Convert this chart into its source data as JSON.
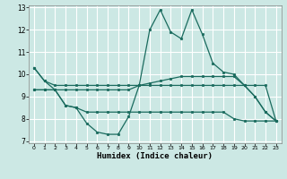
{
  "xlabel": "Humidex (Indice chaleur)",
  "xlim": [
    -0.5,
    23.5
  ],
  "ylim": [
    6.9,
    13.1
  ],
  "yticks": [
    7,
    8,
    9,
    10,
    11,
    12,
    13
  ],
  "xticks": [
    0,
    1,
    2,
    3,
    4,
    5,
    6,
    7,
    8,
    9,
    10,
    11,
    12,
    13,
    14,
    15,
    16,
    17,
    18,
    19,
    20,
    21,
    22,
    23
  ],
  "bg_color": "#cce8e4",
  "grid_color": "#b0d8d4",
  "line_color": "#1a6b5e",
  "lines": [
    [
      10.3,
      9.7,
      9.5,
      9.5,
      9.5,
      9.5,
      9.5,
      9.5,
      9.5,
      9.5,
      9.5,
      9.5,
      9.5,
      9.5,
      9.5,
      9.5,
      9.5,
      9.5,
      9.5,
      9.5,
      9.5,
      9.5,
      9.5,
      7.9
    ],
    [
      10.3,
      9.7,
      9.3,
      8.6,
      8.5,
      7.8,
      7.4,
      7.3,
      7.3,
      8.1,
      9.5,
      12.0,
      12.9,
      11.9,
      11.6,
      12.9,
      11.8,
      10.5,
      10.1,
      10.0,
      9.5,
      9.0,
      8.3,
      7.9
    ],
    [
      9.3,
      9.3,
      9.3,
      9.3,
      9.3,
      9.3,
      9.3,
      9.3,
      9.3,
      9.3,
      9.5,
      9.6,
      9.7,
      9.8,
      9.9,
      9.9,
      9.9,
      9.9,
      9.9,
      9.9,
      9.5,
      9.0,
      8.3,
      7.9
    ],
    [
      9.3,
      9.3,
      9.3,
      8.6,
      8.5,
      8.3,
      8.3,
      8.3,
      8.3,
      8.3,
      8.3,
      8.3,
      8.3,
      8.3,
      8.3,
      8.3,
      8.3,
      8.3,
      8.3,
      8.0,
      7.9,
      7.9,
      7.9,
      7.9
    ]
  ]
}
